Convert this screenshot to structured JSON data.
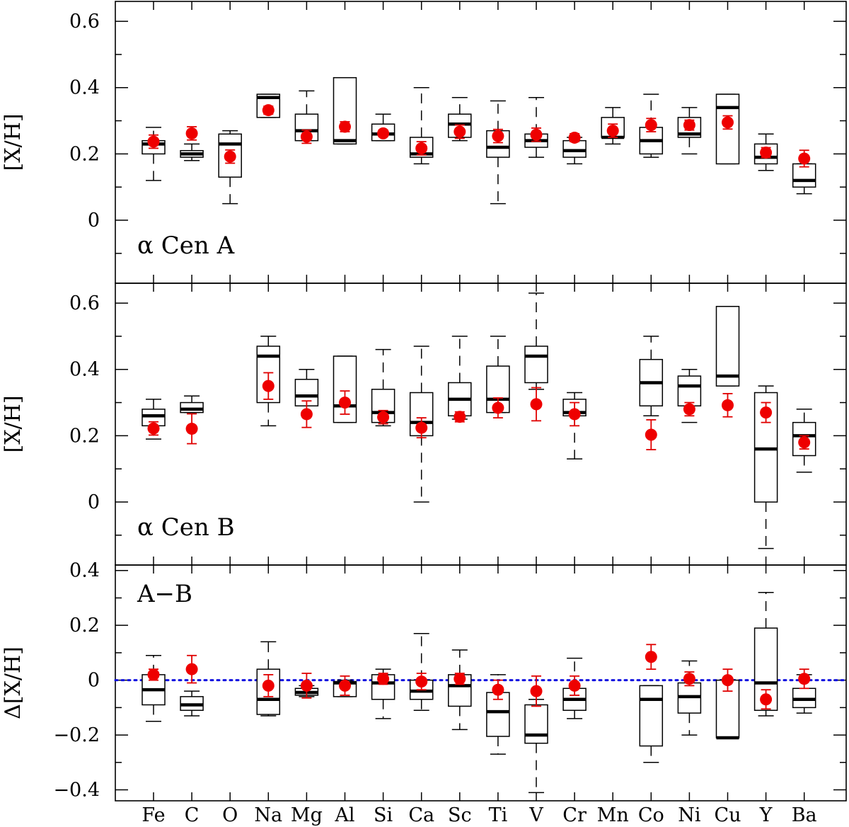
{
  "chart_data": [
    {
      "type": "boxplot",
      "panel_label": "α Cen A",
      "ylabel": "[X/H]",
      "ylim": [
        -0.19,
        0.66
      ],
      "yticks": [
        0,
        0.2,
        0.4,
        0.6
      ],
      "yticks_text": [
        "0",
        "0.2",
        "0.4",
        "0.6"
      ],
      "reference_line": null,
      "categories": [
        "Fe",
        "C",
        "O",
        "Na",
        "Mg",
        "Al",
        "Si",
        "Ca",
        "Sc",
        "Ti",
        "V",
        "Cr",
        "Mn",
        "Co",
        "Ni",
        "Cu",
        "Y",
        "Ba"
      ],
      "boxes": [
        {
          "whislo": 0.12,
          "q1": 0.2,
          "med": 0.23,
          "q3": 0.24,
          "whishi": 0.28
        },
        {
          "whislo": 0.18,
          "q1": 0.19,
          "med": 0.2,
          "q3": 0.21,
          "whishi": 0.23
        },
        {
          "whislo": 0.05,
          "q1": 0.13,
          "med": 0.23,
          "q3": 0.26,
          "whishi": 0.27
        },
        {
          "whislo": 0.31,
          "q1": 0.31,
          "med": 0.37,
          "q3": 0.38,
          "whishi": 0.38
        },
        {
          "whislo": 0.24,
          "q1": 0.24,
          "med": 0.27,
          "q3": 0.32,
          "whishi": 0.39
        },
        {
          "whislo": 0.23,
          "q1": 0.23,
          "med": 0.24,
          "q3": 0.43,
          "whishi": 0.43
        },
        {
          "whislo": 0.24,
          "q1": 0.24,
          "med": 0.26,
          "q3": 0.29,
          "whishi": 0.32
        },
        {
          "whislo": 0.17,
          "q1": 0.19,
          "med": 0.2,
          "q3": 0.25,
          "whishi": 0.4
        },
        {
          "whislo": 0.24,
          "q1": 0.25,
          "med": 0.29,
          "q3": 0.32,
          "whishi": 0.37
        },
        {
          "whislo": 0.05,
          "q1": 0.19,
          "med": 0.22,
          "q3": 0.27,
          "whishi": 0.36
        },
        {
          "whislo": 0.19,
          "q1": 0.22,
          "med": 0.24,
          "q3": 0.26,
          "whishi": 0.37
        },
        {
          "whislo": 0.17,
          "q1": 0.19,
          "med": 0.21,
          "q3": 0.24,
          "whishi": 0.25
        },
        {
          "whislo": 0.23,
          "q1": 0.25,
          "med": 0.25,
          "q3": 0.31,
          "whishi": 0.34
        },
        {
          "whislo": 0.19,
          "q1": 0.2,
          "med": 0.24,
          "q3": 0.28,
          "whishi": 0.38
        },
        {
          "whislo": 0.2,
          "q1": 0.25,
          "med": 0.26,
          "q3": 0.31,
          "whishi": 0.34
        },
        {
          "whislo": 0.17,
          "q1": 0.17,
          "med": 0.34,
          "q3": 0.38,
          "whishi": 0.38
        },
        {
          "whislo": 0.15,
          "q1": 0.17,
          "med": 0.19,
          "q3": 0.23,
          "whishi": 0.26
        },
        {
          "whislo": 0.08,
          "q1": 0.1,
          "med": 0.12,
          "q3": 0.17,
          "whishi": 0.17
        }
      ],
      "points": [
        {
          "y": 0.237,
          "err": 0.02
        },
        {
          "y": 0.262,
          "err": 0.02
        },
        {
          "y": 0.192,
          "err": 0.02
        },
        {
          "y": 0.332,
          "err": 0.012
        },
        {
          "y": 0.252,
          "err": 0.02
        },
        {
          "y": 0.282,
          "err": 0.015
        },
        {
          "y": 0.262,
          "err": 0.01
        },
        {
          "y": 0.217,
          "err": 0.02
        },
        {
          "y": 0.267,
          "err": 0.02
        },
        {
          "y": 0.254,
          "err": 0.02
        },
        {
          "y": 0.258,
          "err": 0.02
        },
        {
          "y": 0.249,
          "err": 0.012
        },
        {
          "y": 0.27,
          "err": 0.02
        },
        {
          "y": 0.287,
          "err": 0.02
        },
        {
          "y": 0.287,
          "err": 0.015
        },
        {
          "y": 0.295,
          "err": 0.02
        },
        {
          "y": 0.204,
          "err": 0.015
        },
        {
          "y": 0.186,
          "err": 0.025
        }
      ]
    },
    {
      "type": "boxplot",
      "panel_label": "α Cen B",
      "ylabel": "[X/H]",
      "ylim": [
        -0.19,
        0.66
      ],
      "yticks": [
        0,
        0.2,
        0.4,
        0.6
      ],
      "yticks_text": [
        "0",
        "0.2",
        "0.4",
        "0.6"
      ],
      "reference_line": null,
      "categories": [
        "Fe",
        "C",
        "O",
        "Na",
        "Mg",
        "Al",
        "Si",
        "Ca",
        "Sc",
        "Ti",
        "V",
        "Cr",
        "Mn",
        "Co",
        "Ni",
        "Cu",
        "Y",
        "Ba"
      ],
      "boxes": [
        {
          "whislo": 0.19,
          "q1": 0.23,
          "med": 0.26,
          "q3": 0.28,
          "whishi": 0.31
        },
        {
          "whislo": 0.27,
          "q1": 0.27,
          "med": 0.28,
          "q3": 0.3,
          "whishi": 0.32
        },
        null,
        {
          "whislo": 0.23,
          "q1": 0.3,
          "med": 0.44,
          "q3": 0.47,
          "whishi": 0.5
        },
        {
          "whislo": 0.29,
          "q1": 0.29,
          "med": 0.32,
          "q3": 0.37,
          "whishi": 0.4
        },
        {
          "whislo": 0.24,
          "q1": 0.24,
          "med": 0.29,
          "q3": 0.44,
          "whishi": 0.44
        },
        {
          "whislo": 0.23,
          "q1": 0.24,
          "med": 0.27,
          "q3": 0.34,
          "whishi": 0.46
        },
        {
          "whislo": 0.0,
          "q1": 0.2,
          "med": 0.24,
          "q3": 0.33,
          "whishi": 0.47
        },
        {
          "whislo": 0.25,
          "q1": 0.26,
          "med": 0.31,
          "q3": 0.36,
          "whishi": 0.5
        },
        {
          "whislo": 0.27,
          "q1": 0.27,
          "med": 0.31,
          "q3": 0.41,
          "whishi": 0.5
        },
        {
          "whislo": 0.34,
          "q1": 0.36,
          "med": 0.44,
          "q3": 0.47,
          "whishi": 0.63
        },
        {
          "whislo": 0.13,
          "q1": 0.26,
          "med": 0.27,
          "q3": 0.31,
          "whishi": 0.33
        },
        null,
        {
          "whislo": 0.26,
          "q1": 0.29,
          "med": 0.36,
          "q3": 0.43,
          "whishi": 0.5
        },
        {
          "whislo": 0.24,
          "q1": 0.29,
          "med": 0.35,
          "q3": 0.38,
          "whishi": 0.4
        },
        {
          "whislo": 0.35,
          "q1": 0.35,
          "med": 0.38,
          "q3": 0.59,
          "whishi": 0.59
        },
        {
          "whislo": -0.14,
          "q1": 0.0,
          "med": 0.16,
          "q3": 0.33,
          "whishi": 0.35
        },
        {
          "whislo": 0.09,
          "q1": 0.14,
          "med": 0.2,
          "q3": 0.24,
          "whishi": 0.28
        }
      ],
      "points": [
        {
          "y": 0.222,
          "err": 0.02
        },
        {
          "y": 0.221,
          "err": 0.045
        },
        null,
        {
          "y": 0.35,
          "err": 0.04
        },
        {
          "y": 0.265,
          "err": 0.04
        },
        {
          "y": 0.3,
          "err": 0.035
        },
        {
          "y": 0.256,
          "err": 0.02
        },
        {
          "y": 0.224,
          "err": 0.03
        },
        {
          "y": 0.257,
          "err": 0.015
        },
        {
          "y": 0.284,
          "err": 0.03
        },
        {
          "y": 0.295,
          "err": 0.05
        },
        {
          "y": 0.265,
          "err": 0.035
        },
        null,
        {
          "y": 0.203,
          "err": 0.045
        },
        {
          "y": 0.28,
          "err": 0.02
        },
        {
          "y": 0.292,
          "err": 0.035
        },
        {
          "y": 0.27,
          "err": 0.03
        },
        {
          "y": 0.18,
          "err": 0.02
        }
      ]
    },
    {
      "type": "boxplot",
      "panel_label": "A−B",
      "ylabel": "Δ[X/H]",
      "ylim": [
        -0.44,
        0.42
      ],
      "yticks": [
        -0.4,
        -0.2,
        0,
        0.2,
        0.4
      ],
      "yticks_text": [
        "−0.4",
        "−0.2",
        "0",
        "0.2",
        "0.4"
      ],
      "reference_line": {
        "y": 0,
        "style": "dotted",
        "color": "#1010e0"
      },
      "categories": [
        "Fe",
        "C",
        "O",
        "Na",
        "Mg",
        "Al",
        "Si",
        "Ca",
        "Sc",
        "Ti",
        "V",
        "Cr",
        "Mn",
        "Co",
        "Ni",
        "Cu",
        "Y",
        "Ba"
      ],
      "boxes": [
        {
          "whislo": -0.15,
          "q1": -0.09,
          "med": -0.035,
          "q3": 0.02,
          "whishi": 0.09
        },
        {
          "whislo": -0.13,
          "q1": -0.11,
          "med": -0.09,
          "q3": -0.06,
          "whishi": -0.04
        },
        null,
        {
          "whislo": -0.13,
          "q1": -0.125,
          "med": -0.07,
          "q3": 0.04,
          "whishi": 0.14
        },
        {
          "whislo": -0.06,
          "q1": -0.055,
          "med": -0.045,
          "q3": -0.03,
          "whishi": -0.02
        },
        {
          "whislo": -0.06,
          "q1": -0.06,
          "med": -0.01,
          "q3": -0.005,
          "whishi": 0.0
        },
        {
          "whislo": -0.14,
          "q1": -0.07,
          "med": -0.01,
          "q3": 0.02,
          "whishi": 0.04
        },
        {
          "whislo": -0.11,
          "q1": -0.07,
          "med": -0.04,
          "q3": 0.0,
          "whishi": 0.17
        },
        {
          "whislo": -0.18,
          "q1": -0.095,
          "med": -0.02,
          "q3": 0.02,
          "whishi": 0.11
        },
        {
          "whislo": -0.27,
          "q1": -0.205,
          "med": -0.115,
          "q3": -0.045,
          "whishi": 0.02
        },
        {
          "whislo": -0.41,
          "q1": -0.23,
          "med": -0.2,
          "q3": -0.09,
          "whishi": -0.07
        },
        {
          "whislo": -0.14,
          "q1": -0.11,
          "med": -0.07,
          "q3": -0.03,
          "whishi": 0.08
        },
        null,
        {
          "whislo": -0.3,
          "q1": -0.24,
          "med": -0.07,
          "q3": -0.02,
          "whishi": -0.02
        },
        {
          "whislo": -0.2,
          "q1": -0.12,
          "med": -0.06,
          "q3": -0.01,
          "whishi": 0.07
        },
        {
          "whislo": -0.21,
          "q1": -0.21,
          "med": -0.21,
          "q3": 0.0,
          "whishi": 0.0
        },
        {
          "whislo": -0.13,
          "q1": -0.11,
          "med": -0.01,
          "q3": 0.19,
          "whishi": 0.32
        },
        {
          "whislo": -0.12,
          "q1": -0.1,
          "med": -0.07,
          "q3": -0.03,
          "whishi": 0.02
        }
      ],
      "points": [
        {
          "y": 0.02,
          "err": 0.02
        },
        {
          "y": 0.04,
          "err": 0.05
        },
        null,
        {
          "y": -0.02,
          "err": 0.04
        },
        {
          "y": -0.02,
          "err": 0.045
        },
        {
          "y": -0.02,
          "err": 0.035
        },
        {
          "y": 0.005,
          "err": 0.02
        },
        {
          "y": -0.005,
          "err": 0.03
        },
        {
          "y": 0.005,
          "err": 0.02
        },
        {
          "y": -0.035,
          "err": 0.035
        },
        {
          "y": -0.04,
          "err": 0.055
        },
        {
          "y": -0.02,
          "err": 0.035
        },
        null,
        {
          "y": 0.085,
          "err": 0.045
        },
        {
          "y": 0.005,
          "err": 0.025
        },
        {
          "y": 0.0,
          "err": 0.04
        },
        {
          "y": -0.07,
          "err": 0.035
        },
        {
          "y": 0.005,
          "err": 0.035
        }
      ]
    }
  ]
}
